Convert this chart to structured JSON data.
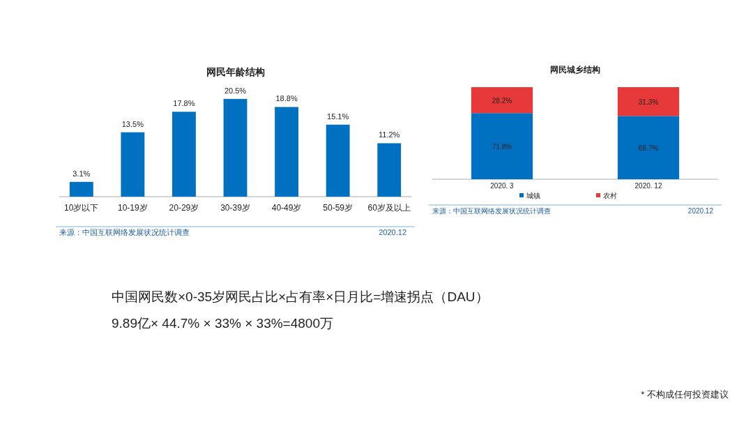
{
  "chart_data": [
    {
      "type": "bar",
      "title": "网民年龄结构",
      "categories": [
        "10岁以下",
        "10-19岁",
        "20-29岁",
        "30-39岁",
        "40-49岁",
        "50-59岁",
        "60岁及以上"
      ],
      "values": [
        3.1,
        13.5,
        17.8,
        20.5,
        18.8,
        15.1,
        11.2
      ],
      "value_labels": [
        "3.1%",
        "13.5%",
        "17.8%",
        "20.5%",
        "18.8%",
        "15.1%",
        "11.2%"
      ],
      "color": "#0070c0",
      "annotations": [
        "来源：中国互联网络发展状况统计调查",
        "2020.12"
      ]
    },
    {
      "type": "bar",
      "stacked": true,
      "title": "网民城乡结构",
      "categories": [
        "2020. 3",
        "2020. 12"
      ],
      "legend": "bottom",
      "series": [
        {
          "name": "城镇",
          "color": "#0070c0",
          "values": [
            71.8,
            68.7
          ],
          "value_labels": [
            "71.8%",
            "68.7%"
          ]
        },
        {
          "name": "农村",
          "color": "#e8393a",
          "values": [
            28.2,
            31.3
          ],
          "value_labels": [
            "28.2%",
            "31.3%"
          ]
        }
      ],
      "annotations": [
        "来源：中国互联网络发展状况统计调查",
        "2020.12"
      ]
    },
    {
      "type": "other",
      "annotations": [
        "中国网民数×0-35岁网民占比×占有率×日月比=增速拐点（DAU）",
        "9.89亿× 44.7% × 33% × 33%=4800万",
        "* 不构成任何投资建议"
      ]
    }
  ]
}
